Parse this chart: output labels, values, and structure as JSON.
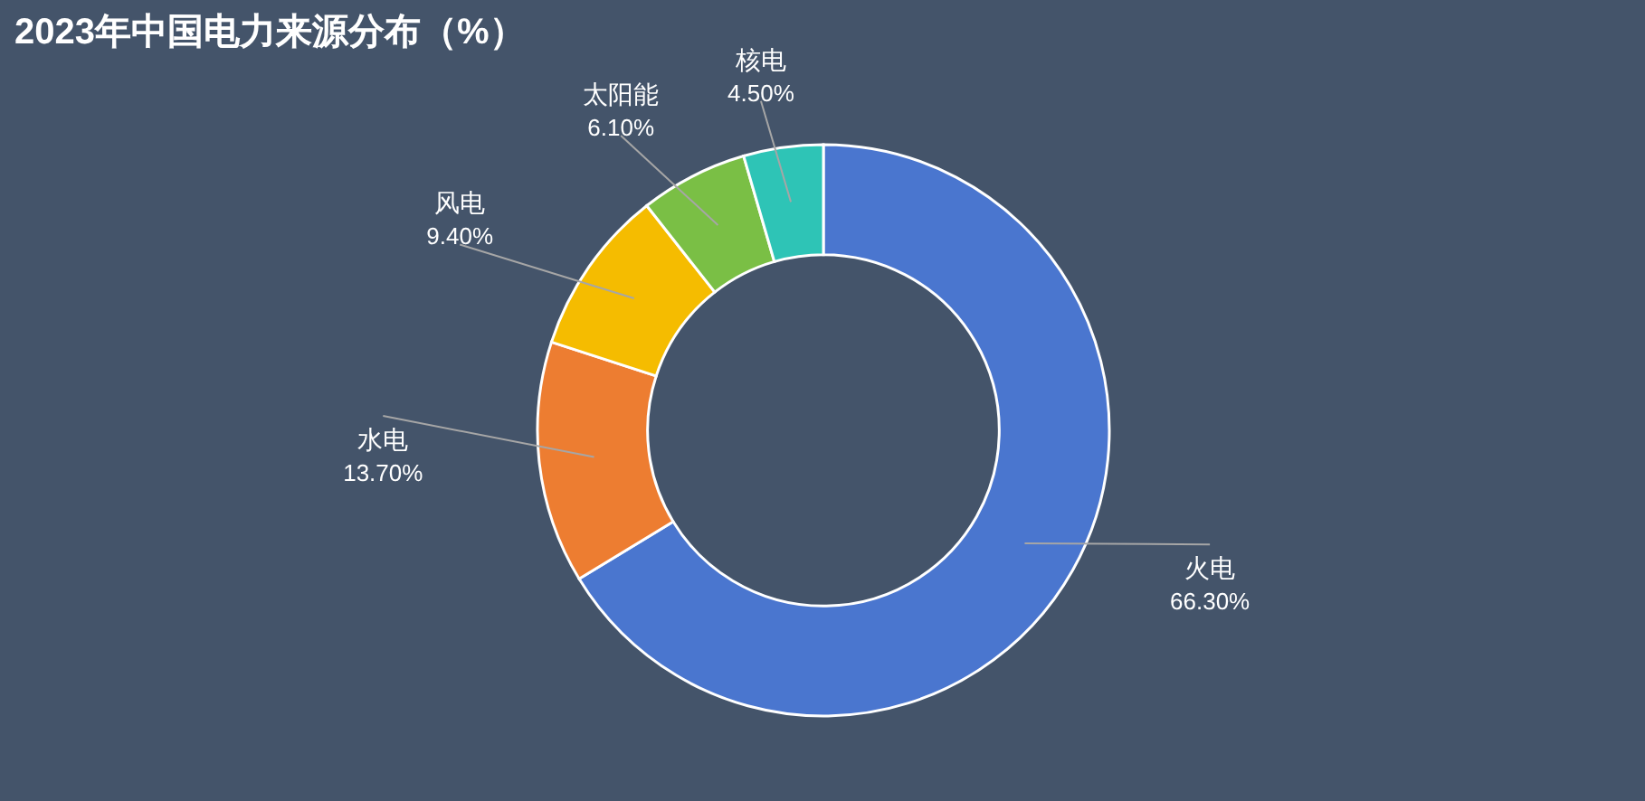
{
  "chart_data": {
    "type": "donut",
    "title": "2023年中国电力来源分布（%）",
    "categories": [
      "火电",
      "水电",
      "风电",
      "太阳能",
      "核电"
    ],
    "values": [
      66.3,
      13.7,
      9.4,
      6.1,
      4.5
    ],
    "value_labels": [
      "66.30%",
      "13.70%",
      "9.40%",
      "6.10%",
      "4.50%"
    ],
    "colors": [
      "#4a76cf",
      "#ed7d31",
      "#f5bc00",
      "#7abf45",
      "#2ec4b6"
    ],
    "legend": false
  }
}
